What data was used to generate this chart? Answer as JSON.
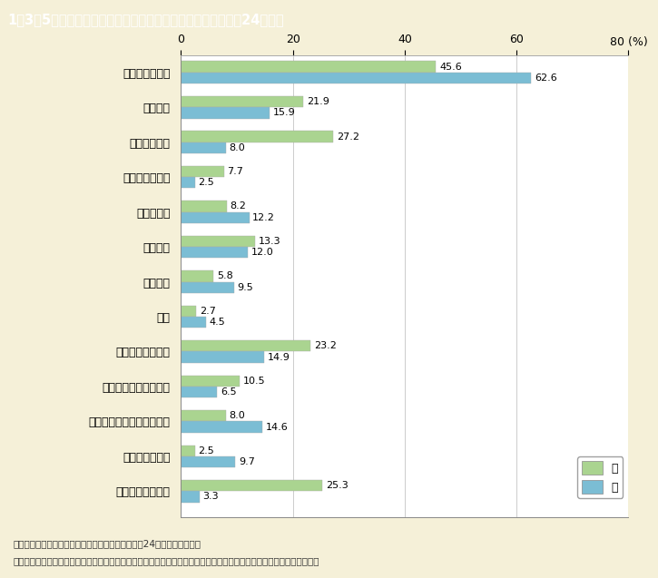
{
  "title": "1－3－5図　婚姻関係事件における申立ての動機別割合（平成24年度）",
  "categories": [
    "性格が合わない",
    "異性関係",
    "暴力を振るう",
    "酒を飲み過ぎる",
    "性的不調和",
    "浪費する",
    "異常性格",
    "病気",
    "精神的に虐待する",
    "家庭を捨てて省みない",
    "家族親族と折り合いが悪い",
    "同居に応じない",
    "生活費を渡さない"
  ],
  "wife_values": [
    45.6,
    21.9,
    27.2,
    7.7,
    8.2,
    13.3,
    5.8,
    2.7,
    23.2,
    10.5,
    8.0,
    2.5,
    25.3
  ],
  "husband_values": [
    62.6,
    15.9,
    8.0,
    2.5,
    12.2,
    12.0,
    9.5,
    4.5,
    14.9,
    6.5,
    14.6,
    9.7,
    3.3
  ],
  "wife_color": "#aad490",
  "husband_color": "#7bbdd4",
  "wife_label": "妻",
  "husband_label": "夫",
  "xlim": [
    0,
    80
  ],
  "xticks": [
    0,
    20,
    40,
    60,
    80
  ],
  "xlabel": "80 (%)",
  "background_color": "#f5f0d8",
  "plot_background": "#ffffff",
  "title_bg_color": "#7d6645",
  "title_text_color": "#ffffff",
  "footer_line1": "（備考）　１．最高裁判所「司法統計年報」（平成24年度）より作成。",
  "footer_line2": "　　　　　２．申立ての動機は，申立人の言う動機のうち主なものを３個まで挙げる方法で調査し，重複集計したもの。"
}
